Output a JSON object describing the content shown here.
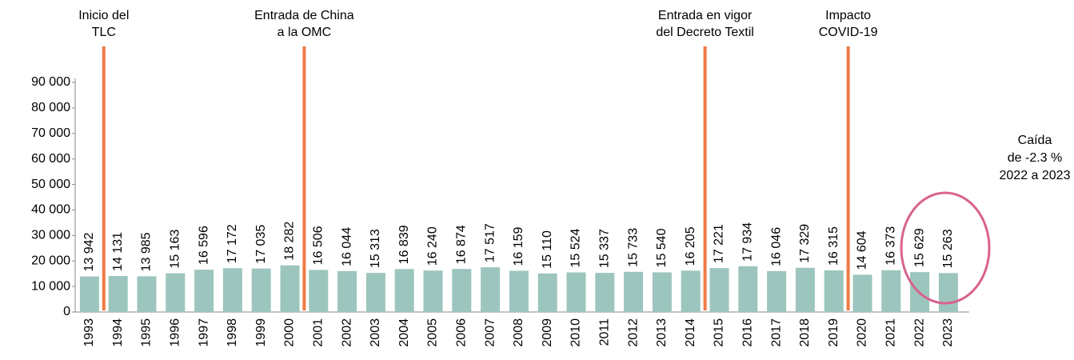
{
  "chart_data": {
    "type": "bar",
    "categories": [
      "1993",
      "1994",
      "1995",
      "1996",
      "1997",
      "1998",
      "1999",
      "2000",
      "2001",
      "2002",
      "2003",
      "2004",
      "2005",
      "2006",
      "2007",
      "2008",
      "2009",
      "2010",
      "2011",
      "2012",
      "2013",
      "2014",
      "2015",
      "2016",
      "2017",
      "2018",
      "2019",
      "2020",
      "2021",
      "2022",
      "2023"
    ],
    "values": [
      13942,
      14131,
      13985,
      15163,
      16596,
      17172,
      17035,
      18282,
      16506,
      16044,
      15313,
      16839,
      16240,
      16874,
      17517,
      16159,
      15110,
      15524,
      15337,
      15733,
      15540,
      16205,
      17221,
      17934,
      16046,
      17329,
      16315,
      14604,
      16373,
      15629,
      15263
    ],
    "value_labels": [
      "13 942",
      "14 131",
      "13 985",
      "15 163",
      "16 596",
      "17 172",
      "17 035",
      "18 282",
      "16 506",
      "16 044",
      "15 313",
      "16 839",
      "16 240",
      "16 874",
      "17 517",
      "16 159",
      "15 110",
      "15 524",
      "15 337",
      "15 733",
      "15 540",
      "16 205",
      "17 221",
      "17 934",
      "16 046",
      "17 329",
      "16 315",
      "14 604",
      "16 373",
      "15 629",
      "15 263"
    ],
    "color": "#9cc5bd",
    "ylim": [
      0,
      90000
    ],
    "yticks": [
      0,
      {
        "value": 10000,
        "label": "10 000"
      },
      {
        "value": 20000,
        "label": "20 000"
      },
      {
        "value": 30000,
        "label": "30 000"
      },
      {
        "value": 40000,
        "label": "40 000"
      },
      {
        "value": 50000,
        "label": "50 000"
      },
      {
        "value": 60000,
        "label": "60 000"
      },
      {
        "value": 70000,
        "label": "70 000"
      },
      {
        "value": 80000,
        "label": "80 000"
      },
      {
        "value": 90000,
        "label": "90 000"
      }
    ],
    "annotations": [
      {
        "lines": [
          "Inicio del",
          "TLC"
        ]
      },
      {
        "lines": [
          "Entrada de China",
          "a la OMC"
        ]
      },
      {
        "lines": [
          "Entrada en vigor",
          "del Decreto Textil"
        ]
      },
      {
        "lines": [
          "Impacto",
          "COVID-19"
        ]
      }
    ],
    "callout": {
      "lines": [
        "Caída",
        "de -2.3 %",
        "2022 a 2023"
      ]
    },
    "marker_color": "#f07a45",
    "highlight_color": "#d9628f"
  }
}
